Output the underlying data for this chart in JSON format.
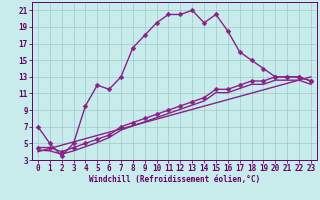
{
  "title": "",
  "xlabel": "Windchill (Refroidissement éolien,°C)",
  "bg_color": "#c8ecec",
  "grid_color": "#a0c8c8",
  "line_color": "#882288",
  "text_color": "#660066",
  "spine_color": "#660066",
  "xlim": [
    -0.5,
    23.5
  ],
  "ylim": [
    3,
    22
  ],
  "xticks": [
    0,
    1,
    2,
    3,
    4,
    5,
    6,
    7,
    8,
    9,
    10,
    11,
    12,
    13,
    14,
    15,
    16,
    17,
    18,
    19,
    20,
    21,
    22,
    23
  ],
  "yticks": [
    3,
    5,
    7,
    9,
    11,
    13,
    15,
    17,
    19,
    21
  ],
  "line1_x": [
    0,
    1,
    2,
    3,
    4,
    5,
    6,
    7,
    8,
    9,
    10,
    11,
    12,
    13,
    14,
    15,
    16,
    17,
    18,
    19,
    20,
    21,
    22,
    23
  ],
  "line1_y": [
    7,
    5,
    3.5,
    5,
    9.5,
    12,
    11.5,
    13,
    16.5,
    18,
    19.5,
    20.5,
    20.5,
    21,
    19.5,
    20.5,
    18.5,
    16,
    15,
    14,
    13,
    13,
    13,
    12.5
  ],
  "line2_x": [
    0,
    1,
    2,
    3,
    4,
    5,
    6,
    7,
    8,
    9,
    10,
    11,
    12,
    13,
    14,
    15,
    16,
    17,
    18,
    19,
    20,
    21,
    22,
    23
  ],
  "line2_y": [
    4.5,
    4.5,
    4.0,
    4.5,
    5.0,
    5.5,
    6.0,
    7.0,
    7.5,
    8.0,
    8.5,
    9.0,
    9.5,
    10.0,
    10.5,
    11.5,
    11.5,
    12.0,
    12.5,
    12.5,
    13.0,
    13.0,
    13.0,
    12.5
  ],
  "line3_x": [
    0,
    1,
    2,
    3,
    4,
    5,
    6,
    7,
    8,
    9,
    10,
    11,
    12,
    13,
    14,
    15,
    16,
    17,
    18,
    19,
    20,
    21,
    22,
    23
  ],
  "line3_y": [
    4.2,
    4.1,
    3.7,
    4.1,
    4.6,
    5.1,
    5.7,
    6.6,
    7.1,
    7.6,
    8.1,
    8.6,
    9.1,
    9.6,
    10.1,
    11.1,
    11.1,
    11.6,
    12.1,
    12.1,
    12.6,
    12.6,
    12.6,
    12.1
  ],
  "line4_x": [
    0,
    23
  ],
  "line4_y": [
    4.0,
    13.0
  ],
  "marker": "D",
  "markersize": 2.5,
  "linewidth": 1.0,
  "tick_fontsize": 5.5,
  "xlabel_fontsize": 5.5
}
